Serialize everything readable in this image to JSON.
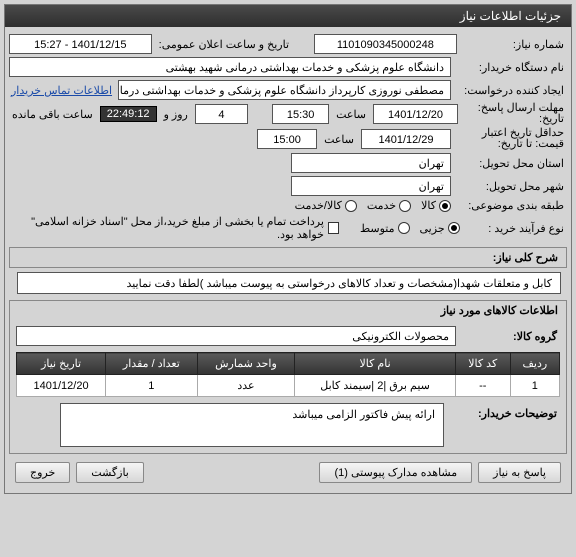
{
  "window": {
    "title": "جزئیات اطلاعات نیاز"
  },
  "fields": {
    "need_no_label": "شماره نیاز:",
    "need_no": "1101090345000248",
    "announce_label": "تاریخ و ساعت اعلان عمومی:",
    "announce": "1401/12/15 - 15:27",
    "buyer_org_label": "نام دستگاه خریدار:",
    "buyer_org": "دانشگاه علوم پزشکی و خدمات بهداشتی درمانی شهید بهشتی",
    "requester_label": "ایجاد کننده درخواست:",
    "requester": "مصطفی نوروزی کارپرداز دانشگاه علوم پزشکی و خدمات بهداشتی درمانی شهید بهشتی",
    "contact_link": "اطلاعات تماس خریدار",
    "deadline_label": "مهلت ارسال پاسخ:",
    "until_label": "تاریخ:",
    "deadline_date": "1401/12/20",
    "time_label": "ساعت",
    "deadline_time": "15:30",
    "days": "4",
    "days_label": "روز و",
    "countdown": "22:49:12",
    "remain_label": "ساعت باقی مانده",
    "min_valid_label": "حداقل تاریخ اعتبار",
    "price_until_label": "قیمت: تا تاریخ:",
    "valid_date": "1401/12/29",
    "valid_time": "15:00",
    "delivery_city_label": "استان محل تحویل:",
    "delivery_city": "تهران",
    "delivery_city2_label": "شهر محل تحویل:",
    "delivery_city2": "تهران",
    "category_label": "طبقه بندی موضوعی:",
    "cat_goods": "کالا",
    "cat_service": "خدمت",
    "cat_goods_service": "کالا/خدمت",
    "purchase_type_label": "نوع فرآیند خرید :",
    "pt_partial": "جزیی",
    "pt_medium": "متوسط",
    "payment_note": "پرداخت تمام یا بخشی از مبلغ خرید،از محل \"اسناد خزانه اسلامی\" خواهد بود."
  },
  "desc_section": {
    "title": "شرح کلی نیاز:",
    "text": "کابل و متعلقات شهدا(مشخصات و تعداد کالاهای درخواستی به پیوست میباشد )لطفا دقت نمایید"
  },
  "items_section": {
    "title": "اطلاعات کالاهای مورد نیاز",
    "group_label": "گروه کالا:",
    "group_value": "محصولات الکترونیکی",
    "columns": [
      "ردیف",
      "کد کالا",
      "نام کالا",
      "واحد شمارش",
      "تعداد / مقدار",
      "تاریخ نیاز"
    ],
    "rows": [
      [
        "1",
        "--",
        "سیم برق |2 |سیمند کابل",
        "عدد",
        "1",
        "1401/12/20"
      ]
    ]
  },
  "buyer_notes": {
    "label": "توضیحات خریدار:",
    "text": "ارائه پیش فاکتور الزامی میباشد"
  },
  "buttons": {
    "respond": "پاسخ به نیاز",
    "attachments": "مشاهده مدارک پیوستی (1)",
    "back": "بازگشت",
    "exit": "خروج"
  }
}
